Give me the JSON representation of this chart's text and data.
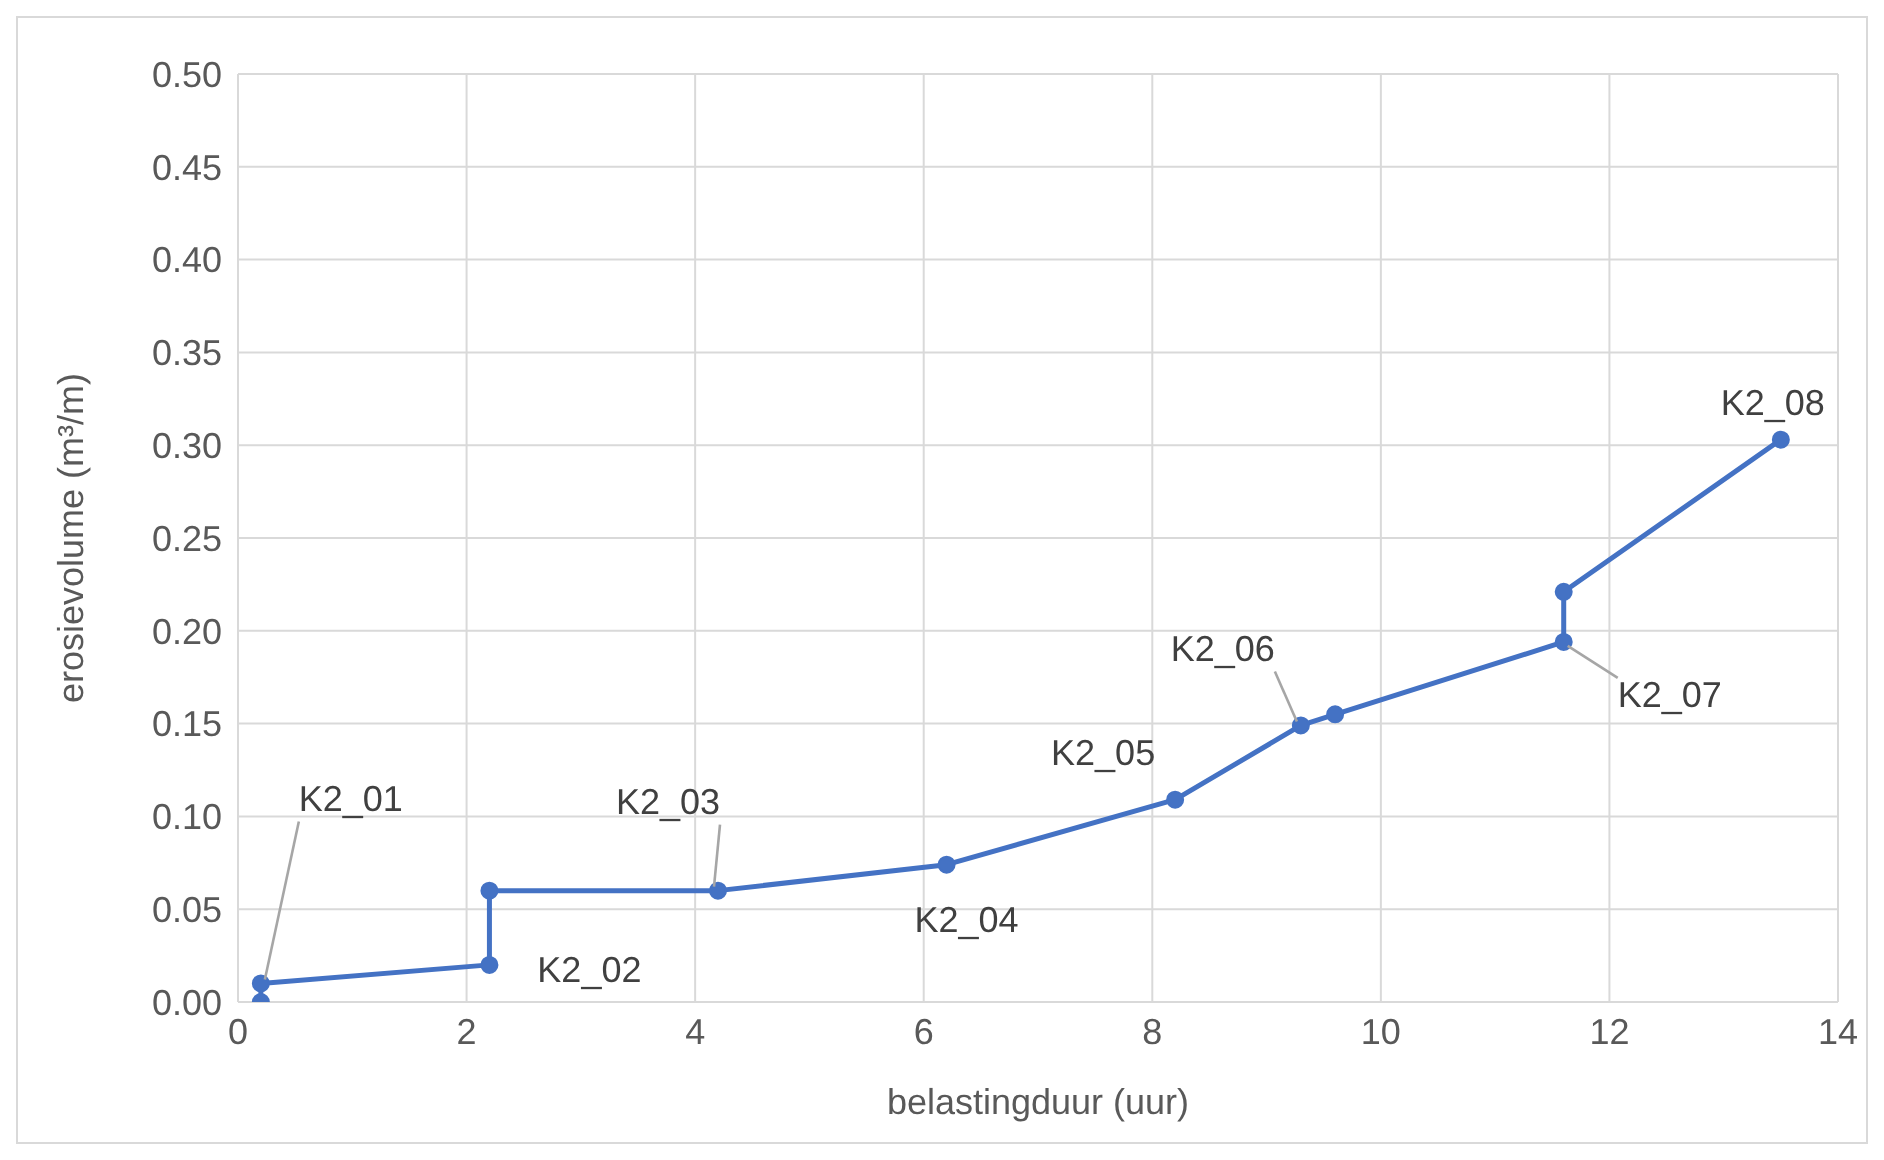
{
  "chart_data": {
    "type": "line",
    "xlabel": "belastingduur (uur)",
    "ylabel": "erosievolume (m³/m)",
    "x": [
      0.2,
      0.2,
      2.2,
      2.2,
      4.2,
      6.2,
      8.2,
      9.3,
      9.6,
      11.6,
      11.6,
      13.5
    ],
    "series": [
      {
        "color": "#4472c4",
        "values": [
          0,
          0.01,
          0.02,
          0.06,
          0.06,
          0.074,
          0.109,
          0.149,
          0.155,
          0.194,
          0.221,
          0.303
        ]
      }
    ],
    "xlim": [
      0,
      14
    ],
    "xticks": [
      0,
      2,
      4,
      6,
      8,
      10,
      12,
      14
    ],
    "ylim": [
      0,
      0.5
    ],
    "yticks": [
      {
        "value": 0,
        "label": "0.00"
      },
      {
        "value": 0.05,
        "label": "0.05"
      },
      {
        "value": 0.1,
        "label": "0.10"
      },
      {
        "value": 0.15,
        "label": "0.15"
      },
      {
        "value": 0.2,
        "label": "0.20"
      },
      {
        "value": 0.25,
        "label": "0.25"
      },
      {
        "value": 0.3,
        "label": "0.30"
      },
      {
        "value": 0.35,
        "label": "0.35"
      },
      {
        "value": 0.4,
        "label": "0.40"
      },
      {
        "value": 0.45,
        "label": "0.45"
      },
      {
        "value": 0.5,
        "label": "0.50"
      }
    ],
    "grid": true,
    "legend": false,
    "marker": "circle",
    "line_style": "solid",
    "annotations": [
      {
        "text": "K2_01",
        "x": 0.2,
        "y": 0.01
      },
      {
        "text": "K2_02",
        "x": 2.2,
        "y": 0.02
      },
      {
        "text": "K2_03",
        "x": 4.2,
        "y": 0.06
      },
      {
        "text": "K2_04",
        "x": 6.2,
        "y": 0.074
      },
      {
        "text": "K2_05",
        "x": 8.2,
        "y": 0.109
      },
      {
        "text": "K2_06",
        "x": 9.3,
        "y": 0.149
      },
      {
        "text": "K2_07",
        "x": 11.6,
        "y": 0.194
      },
      {
        "text": "K2_08",
        "x": 13.5,
        "y": 0.303
      }
    ]
  }
}
